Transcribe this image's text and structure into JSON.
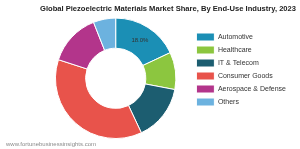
{
  "chart_data": {
    "type": "doughnut",
    "title": "Global Piezoelectric Materials Market Share, By End-Use Industry, 2023",
    "categories": [
      "Automotive",
      "Healthcare",
      "IT & Telecom",
      "Consumer Goods",
      "Aerospace & Defense",
      "Others"
    ],
    "values": [
      18.0,
      10,
      15,
      37,
      14,
      6
    ],
    "value_labels": [
      "18.0%",
      null,
      null,
      null,
      null,
      null
    ],
    "colors": [
      "#1b8fb5",
      "#8cc63f",
      "#1c5d70",
      "#e8534b",
      "#b3358b",
      "#6cb2df"
    ],
    "data_labels": true,
    "legend": "right",
    "source": "www.fortunebusinessinsights.com"
  }
}
